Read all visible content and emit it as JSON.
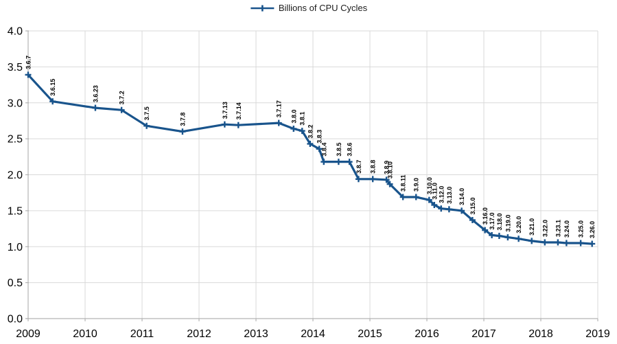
{
  "legend": {
    "label": "Billions of CPU Cycles"
  },
  "colors": {
    "line": "#19548c",
    "grid": "#d9d9d9",
    "axis": "#b3b3b3",
    "text": "#000000",
    "legend_text": "#1c1c1c"
  },
  "chart_data": {
    "type": "line",
    "title": "",
    "xlabel": "",
    "ylabel": "",
    "legend_entries": [
      "Billions of CPU Cycles"
    ],
    "legend_position": "top-center",
    "grid": true,
    "marker": "plus",
    "xlim": [
      2009,
      2019
    ],
    "ylim": [
      0,
      4
    ],
    "x_ticks": [
      "2009",
      "2010",
      "2011",
      "2012",
      "2013",
      "2014",
      "2015",
      "2016",
      "2017",
      "2018",
      "2019"
    ],
    "y_ticks": [
      "0.0",
      "0.5",
      "1.0",
      "1.5",
      "2.0",
      "2.5",
      "3.0",
      "3.5",
      "4.0"
    ],
    "points": [
      {
        "label": "3.6.7",
        "x": 2009.0,
        "y": 3.39
      },
      {
        "label": "3.6.15",
        "x": 2009.43,
        "y": 3.02
      },
      {
        "label": "3.6.23",
        "x": 2010.18,
        "y": 2.93
      },
      {
        "label": "3.7.2",
        "x": 2010.64,
        "y": 2.9
      },
      {
        "label": "3.7.5",
        "x": 2011.08,
        "y": 2.68
      },
      {
        "label": "3.7.8",
        "x": 2011.71,
        "y": 2.6
      },
      {
        "label": "3.7.13",
        "x": 2012.45,
        "y": 2.7
      },
      {
        "label": "3.7.14",
        "x": 2012.69,
        "y": 2.69
      },
      {
        "label": "3.7.17",
        "x": 2013.4,
        "y": 2.72
      },
      {
        "label": "3.8.0",
        "x": 2013.66,
        "y": 2.64
      },
      {
        "label": "3.8.1",
        "x": 2013.81,
        "y": 2.61
      },
      {
        "label": "3.8.2",
        "x": 2013.95,
        "y": 2.43
      },
      {
        "label": "3.8.3",
        "x": 2014.11,
        "y": 2.36
      },
      {
        "label": "3.8.4",
        "x": 2014.19,
        "y": 2.18
      },
      {
        "label": "3.8.5",
        "x": 2014.45,
        "y": 2.18
      },
      {
        "label": "3.8.6",
        "x": 2014.64,
        "y": 2.18
      },
      {
        "label": "3.8.7",
        "x": 2014.8,
        "y": 1.94
      },
      {
        "label": "3.8.8",
        "x": 2015.05,
        "y": 1.94
      },
      {
        "label": "3.8.9",
        "x": 2015.29,
        "y": 1.93
      },
      {
        "label": "3.8.10",
        "x": 2015.35,
        "y": 1.87
      },
      {
        "label": "3.8.11",
        "x": 2015.58,
        "y": 1.69
      },
      {
        "label": "3.9.0",
        "x": 2015.81,
        "y": 1.69
      },
      {
        "label": "3.10.0",
        "x": 2016.04,
        "y": 1.65
      },
      {
        "label": "3.11.0",
        "x": 2016.13,
        "y": 1.58
      },
      {
        "label": "3.12.0",
        "x": 2016.25,
        "y": 1.53
      },
      {
        "label": "3.13.0",
        "x": 2016.39,
        "y": 1.52
      },
      {
        "label": "3.14.0",
        "x": 2016.61,
        "y": 1.5
      },
      {
        "label": "3.15.0",
        "x": 2016.8,
        "y": 1.37
      },
      {
        "label": "3.16.0",
        "x": 2017.02,
        "y": 1.23
      },
      {
        "label": "3.17.0",
        "x": 2017.14,
        "y": 1.16
      },
      {
        "label": "3.18.0",
        "x": 2017.27,
        "y": 1.15
      },
      {
        "label": "3.19.0",
        "x": 2017.42,
        "y": 1.13
      },
      {
        "label": "3.20.0",
        "x": 2017.61,
        "y": 1.11
      },
      {
        "label": "3.21.0",
        "x": 2017.84,
        "y": 1.08
      },
      {
        "label": "3.22.0",
        "x": 2018.07,
        "y": 1.06
      },
      {
        "label": "3.23.1",
        "x": 2018.3,
        "y": 1.06
      },
      {
        "label": "3.24.0",
        "x": 2018.45,
        "y": 1.05
      },
      {
        "label": "3.25.0",
        "x": 2018.7,
        "y": 1.05
      },
      {
        "label": "3.26.0",
        "x": 2018.9,
        "y": 1.04
      }
    ]
  }
}
